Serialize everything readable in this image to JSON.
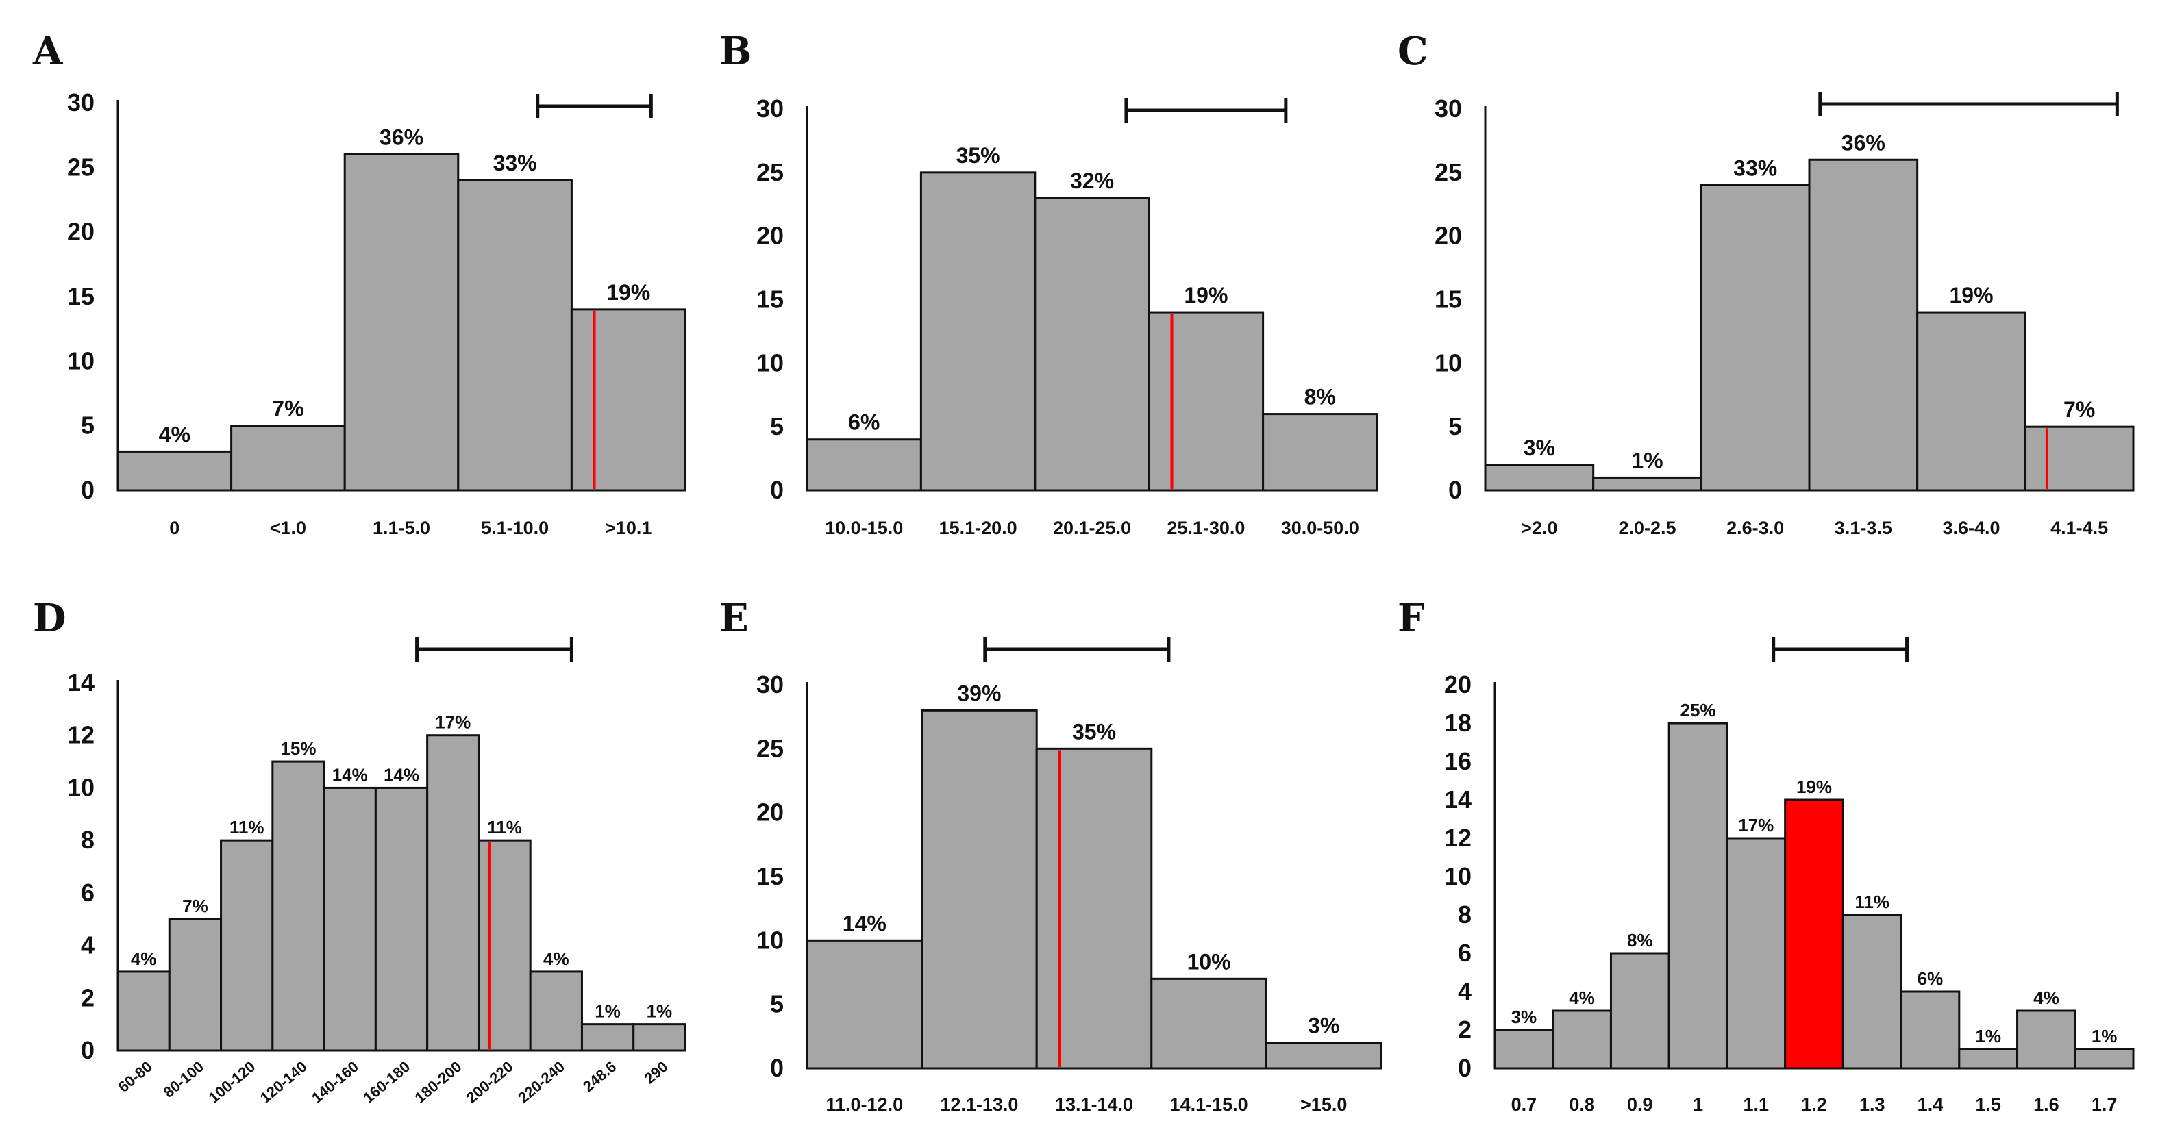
{
  "chart_data": [
    {
      "panel": "A",
      "type": "bar",
      "categories": [
        "0",
        "<1.0",
        "1.1-5.0",
        "5.1-10.0",
        ">10.1"
      ],
      "values": [
        3,
        5,
        26,
        24,
        14
      ],
      "labels": [
        "4%",
        "7%",
        "36%",
        "33%",
        "19%"
      ],
      "yticks": [
        "0",
        "5",
        "10",
        "15",
        "20",
        "25",
        "30"
      ],
      "ylim": [
        0,
        30
      ],
      "ystep": 5,
      "highlight_line_category": 4,
      "highlight_bar": null,
      "range_bracket_categories": [
        3.7,
        4.7
      ],
      "color_bar": "#a6a6a6",
      "color_highlight": "#ff0000"
    },
    {
      "panel": "B",
      "type": "bar",
      "categories": [
        "10.0-15.0",
        "15.1-20.0",
        "20.1-25.0",
        "25.1-30.0",
        "30.0-50.0"
      ],
      "values": [
        4,
        25,
        23,
        14,
        6
      ],
      "labels": [
        "6%",
        "35%",
        "32%",
        "19%",
        "8%"
      ],
      "yticks": [
        "0",
        "5",
        "10",
        "15",
        "20",
        "25",
        "30"
      ],
      "ylim": [
        0,
        30
      ],
      "ystep": 5,
      "highlight_line_category": 3,
      "highlight_bar": null,
      "range_bracket_categories": [
        2.8,
        4.2
      ],
      "color_bar": "#a6a6a6",
      "color_highlight": "#ff0000"
    },
    {
      "panel": "C",
      "type": "bar",
      "categories": [
        ">2.0",
        "2.0-2.5",
        "2.6-3.0",
        "3.1-3.5",
        "3.6-4.0",
        "4.1-4.5"
      ],
      "values": [
        2,
        1,
        24,
        26,
        14,
        5
      ],
      "labels": [
        "3%",
        "1%",
        "33%",
        "36%",
        "19%",
        "7%"
      ],
      "yticks": [
        "0",
        "5",
        "10",
        "15",
        "20",
        "25",
        "30"
      ],
      "ylim": [
        0,
        30
      ],
      "ystep": 5,
      "highlight_line_category": 5,
      "highlight_bar": null,
      "range_bracket_categories": [
        3.1,
        5.85
      ],
      "color_bar": "#a6a6a6",
      "color_highlight": "#ff0000"
    },
    {
      "panel": "D",
      "type": "bar",
      "categories": [
        "60-80",
        "80-100",
        "100-120",
        "120-140",
        "140-160",
        "160-180",
        "180-200",
        "200-220",
        "220-240",
        "248.6",
        "290"
      ],
      "values": [
        3,
        5,
        8,
        11,
        10,
        10,
        12,
        8,
        3,
        1,
        1
      ],
      "labels": [
        "4%",
        "7%",
        "11%",
        "15%",
        "14%",
        "14%",
        "17%",
        "11%",
        "4%",
        "1%",
        "1%"
      ],
      "yticks": [
        "0",
        "2",
        "4",
        "6",
        "8",
        "10",
        "12",
        "14"
      ],
      "ylim": [
        0,
        14
      ],
      "ystep": 2,
      "highlight_line_category": 7,
      "highlight_bar": null,
      "range_bracket_categories": [
        5.8,
        8.8
      ],
      "rotate_xticks": true,
      "color_bar": "#a6a6a6",
      "color_highlight": "#ff0000"
    },
    {
      "panel": "E",
      "type": "bar",
      "categories": [
        "11.0-12.0",
        "12.1-13.0",
        "13.1-14.0",
        "14.1-15.0",
        ">15.0"
      ],
      "values": [
        10,
        28,
        25,
        7,
        2
      ],
      "labels": [
        "14%",
        "39%",
        "35%",
        "10%",
        "3%"
      ],
      "yticks": [
        "0",
        "5",
        "10",
        "15",
        "20",
        "25",
        "30"
      ],
      "ylim": [
        0,
        30
      ],
      "ystep": 5,
      "highlight_line_category": 2,
      "highlight_bar": null,
      "range_bracket_categories": [
        1.55,
        3.15
      ],
      "color_bar": "#a6a6a6",
      "color_highlight": "#ff0000"
    },
    {
      "panel": "F",
      "type": "bar",
      "categories": [
        "0.7",
        "0.8",
        "0.9",
        "1",
        "1.1",
        "1.2",
        "1.3",
        "1.4",
        "1.5",
        "1.6",
        "1.7"
      ],
      "values": [
        2,
        3,
        6,
        18,
        12,
        14,
        8,
        4,
        1,
        3,
        1
      ],
      "labels": [
        "3%",
        "4%",
        "8%",
        "25%",
        "17%",
        "19%",
        "11%",
        "6%",
        "1%",
        "4%",
        "1%"
      ],
      "yticks": [
        "0",
        "2",
        "4",
        "6",
        "8",
        "10",
        "12",
        "14",
        "16",
        "18",
        "20"
      ],
      "ylim": [
        0,
        20
      ],
      "ystep": 2,
      "highlight_line_category": null,
      "highlight_bar": 5,
      "range_bracket_categories": [
        4.8,
        7.1
      ],
      "color_bar": "#a6a6a6",
      "color_highlight": "#ff0000"
    }
  ]
}
